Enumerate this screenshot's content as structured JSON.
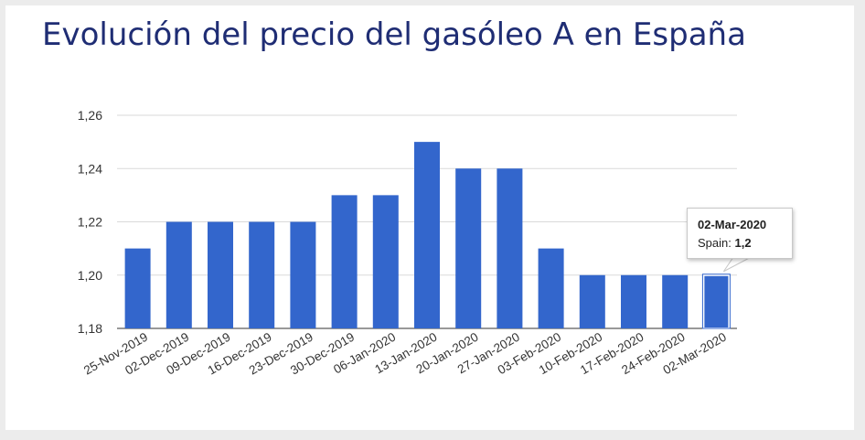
{
  "title": "Evolución del precio del gasóleo A en España",
  "tooltip": {
    "date": "02-Mar-2020",
    "series": "Spain:",
    "value": "1,2"
  },
  "colors": {
    "bar": "#3366cc",
    "title": "#1f2d74",
    "grid": "#d9d9d9"
  },
  "chart_data": {
    "type": "bar",
    "title": "Evolución del precio del gasóleo A en España",
    "xlabel": "",
    "ylabel": "",
    "ylim": [
      1.18,
      1.26
    ],
    "yticks": [
      "1,18",
      "1,20",
      "1,22",
      "1,24",
      "1,26"
    ],
    "ytick_values": [
      1.18,
      1.2,
      1.22,
      1.24,
      1.26
    ],
    "grid": true,
    "categories": [
      "25-Nov-2019",
      "02-Dec-2019",
      "09-Dec-2019",
      "16-Dec-2019",
      "23-Dec-2019",
      "30-Dec-2019",
      "06-Jan-2020",
      "13-Jan-2020",
      "20-Jan-2020",
      "27-Jan-2020",
      "03-Feb-2020",
      "10-Feb-2020",
      "17-Feb-2020",
      "24-Feb-2020",
      "02-Mar-2020"
    ],
    "series": [
      {
        "name": "Spain",
        "values": [
          1.21,
          1.22,
          1.22,
          1.22,
          1.22,
          1.23,
          1.23,
          1.25,
          1.24,
          1.24,
          1.21,
          1.2,
          1.2,
          1.2,
          1.2
        ]
      }
    ],
    "highlighted_index": 14
  }
}
